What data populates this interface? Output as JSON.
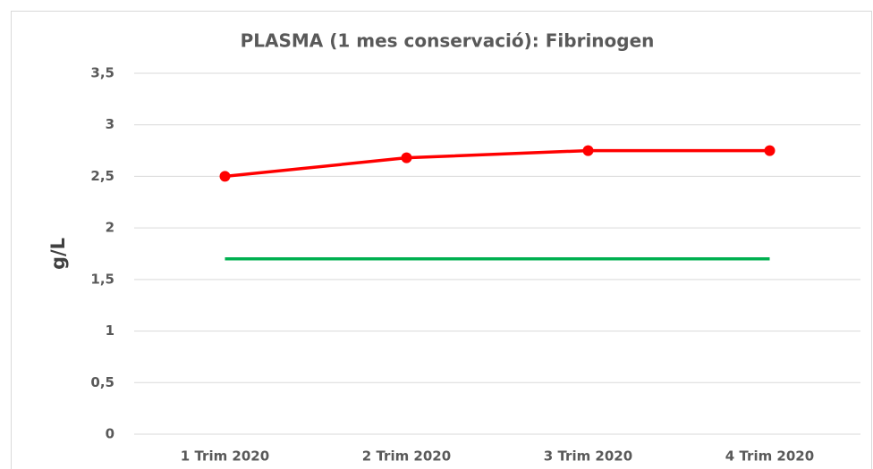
{
  "chart_data": {
    "type": "line",
    "title": "PLASMA (1 mes conservació): Fibrinogen",
    "y_label": "g/L",
    "categories": [
      "1 Trim 2020",
      "2 Trim 2020",
      "3 Trim 2020",
      "4 Trim 2020"
    ],
    "series": [
      {
        "color": "#ff0000",
        "markers": true,
        "values": [
          2.5,
          2.68,
          2.75,
          2.75
        ]
      },
      {
        "color": "#00b050",
        "markers": false,
        "values": [
          1.7,
          1.7,
          1.7,
          1.7
        ]
      }
    ],
    "ylim": [
      0,
      3.5
    ],
    "yticks": [
      0,
      {
        "value": 0.5,
        "label": "0,5"
      },
      1,
      {
        "value": 1.5,
        "label": "1,5"
      },
      2,
      {
        "value": 2.5,
        "label": "2,5"
      },
      3,
      {
        "value": 3.5,
        "label": "3,5"
      }
    ],
    "grid": true
  }
}
